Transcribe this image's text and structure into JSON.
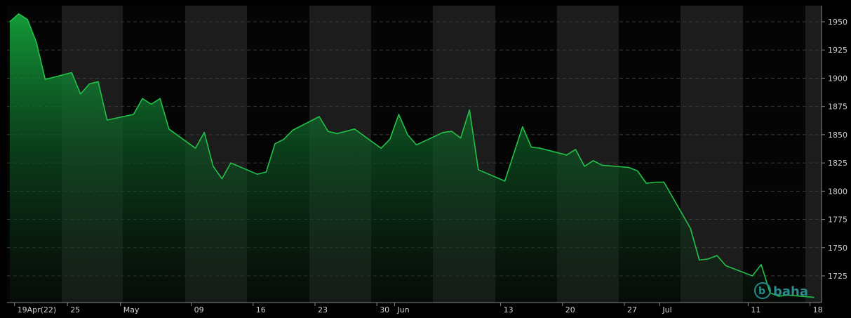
{
  "chart_data": {
    "type": "area",
    "title": "",
    "xlabel": "",
    "ylabel": "",
    "ylim": [
      1705,
      1960
    ],
    "y_ticks": [
      1725,
      1750,
      1775,
      1800,
      1825,
      1850,
      1875,
      1900,
      1925,
      1950
    ],
    "grid": true,
    "week_shading": true,
    "x_ticks": [
      {
        "label": "19Apr(22)",
        "day": 1
      },
      {
        "label": "25",
        "day": 7
      },
      {
        "label": "May",
        "day": 13
      },
      {
        "label": "09",
        "day": 21
      },
      {
        "label": "16",
        "day": 28
      },
      {
        "label": "23",
        "day": 35
      },
      {
        "label": "30",
        "day": 42
      },
      {
        "label": "Jun",
        "day": 44
      },
      {
        "label": "13",
        "day": 56
      },
      {
        "label": "20",
        "day": 63
      },
      {
        "label": "27",
        "day": 70
      },
      {
        "label": "Jul",
        "day": 74
      },
      {
        "label": "11",
        "day": 84
      },
      {
        "label": "18",
        "day": 91
      }
    ],
    "series": [
      {
        "color": "#22c24a",
        "points": [
          [
            0,
            1950
          ],
          [
            1,
            1957
          ],
          [
            2,
            1952
          ],
          [
            3,
            1932
          ],
          [
            4,
            1899
          ],
          [
            5,
            1905
          ],
          [
            6,
            1886
          ],
          [
            7,
            1895
          ],
          [
            8,
            1897
          ],
          [
            9,
            1863
          ],
          [
            10,
            1868
          ],
          [
            11,
            1882
          ],
          [
            12,
            1877
          ],
          [
            13,
            1882
          ],
          [
            14,
            1855
          ],
          [
            15,
            1838
          ],
          [
            16,
            1852
          ],
          [
            17,
            1822
          ],
          [
            18,
            1811
          ],
          [
            19,
            1825
          ],
          [
            20,
            1815
          ],
          [
            21,
            1817
          ],
          [
            22,
            1842
          ],
          [
            23,
            1846
          ],
          [
            24,
            1854
          ],
          [
            25,
            1866
          ],
          [
            26,
            1853
          ],
          [
            27,
            1851
          ],
          [
            28,
            1853
          ],
          [
            29,
            1855
          ],
          [
            30,
            1838
          ],
          [
            31,
            1846
          ],
          [
            32,
            1868
          ],
          [
            33,
            1850
          ],
          [
            34,
            1841
          ],
          [
            35,
            1852
          ],
          [
            36,
            1853
          ],
          [
            37,
            1847
          ],
          [
            38,
            1872
          ],
          [
            39,
            1819
          ],
          [
            40,
            1809
          ],
          [
            41,
            1833
          ],
          [
            42,
            1857
          ],
          [
            43,
            1839
          ],
          [
            44,
            1838
          ],
          [
            45,
            1832
          ],
          [
            46,
            1837
          ],
          [
            47,
            1822
          ],
          [
            48,
            1827
          ],
          [
            49,
            1823
          ],
          [
            50,
            1821
          ],
          [
            51,
            1818
          ],
          [
            52,
            1807
          ],
          [
            53,
            1808
          ],
          [
            54,
            1808
          ],
          [
            55,
            1767
          ],
          [
            56,
            1739
          ],
          [
            57,
            1740
          ],
          [
            58,
            1743
          ],
          [
            59,
            1734
          ],
          [
            60,
            1725
          ],
          [
            61,
            1735
          ],
          [
            62,
            1710
          ],
          [
            63,
            1707
          ],
          [
            64,
            1708
          ],
          [
            65,
            1706
          ]
        ]
      }
    ],
    "watermark": "baha"
  }
}
